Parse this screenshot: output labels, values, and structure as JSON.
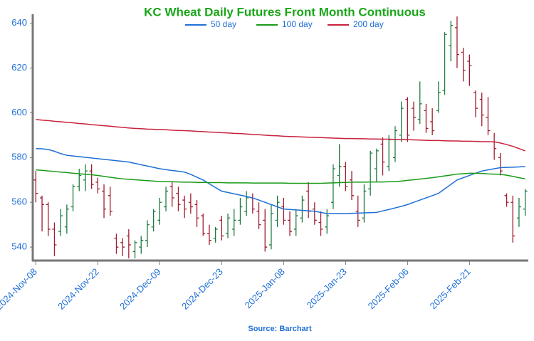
{
  "chart_data": {
    "type": "ohlc",
    "title": "KC Wheat Daily Futures Front Month Continuous",
    "source": "Source: Barchart",
    "categories": [
      "2024-Nov-08",
      null,
      null,
      null,
      null,
      null,
      null,
      null,
      null,
      null,
      "2024-Nov-22",
      null,
      null,
      null,
      null,
      null,
      null,
      null,
      null,
      null,
      "2024-Dec-09",
      null,
      null,
      null,
      null,
      null,
      null,
      null,
      null,
      null,
      "2024-Dec-23",
      null,
      null,
      null,
      null,
      null,
      null,
      null,
      null,
      null,
      "2025-Jan-08",
      null,
      null,
      null,
      null,
      null,
      null,
      null,
      null,
      null,
      "2025-Jan-23",
      null,
      null,
      null,
      null,
      null,
      null,
      null,
      null,
      null,
      "2025-Feb-06",
      null,
      null,
      null,
      null,
      null,
      null,
      null,
      null,
      null,
      "2025-Feb-21",
      null,
      null,
      null,
      null,
      null,
      null,
      null,
      null,
      null
    ],
    "open": [
      570,
      562,
      559,
      548,
      547,
      549,
      558,
      567,
      570,
      574,
      569,
      565,
      563,
      544,
      542,
      545,
      538,
      540,
      543,
      549,
      552,
      558,
      567,
      564,
      561,
      560,
      559,
      554,
      546,
      544,
      552,
      546,
      548,
      552,
      556,
      562,
      556,
      552,
      541,
      552,
      558,
      552,
      548,
      553,
      565,
      557,
      551,
      549,
      560,
      572,
      576,
      570,
      556,
      553,
      566,
      575,
      586,
      576,
      580,
      590,
      606,
      602,
      597,
      601,
      596,
      601,
      610,
      630,
      638,
      627,
      623,
      609,
      606,
      598,
      587,
      580,
      563,
      560,
      553,
      557
    ],
    "high": [
      574,
      563,
      560,
      551,
      557,
      559,
      568,
      575,
      577,
      577,
      571,
      568,
      567,
      546,
      544,
      548,
      543,
      545,
      552,
      557,
      562,
      567,
      569,
      567,
      563,
      564,
      561,
      555,
      550,
      549,
      554,
      555,
      557,
      562,
      565,
      564,
      560,
      557,
      559,
      563,
      562,
      556,
      557,
      563,
      569,
      560,
      556,
      557,
      577,
      586,
      578,
      574,
      563,
      568,
      583,
      584,
      589,
      590,
      594,
      605,
      607,
      605,
      614,
      604,
      602,
      614,
      636,
      641,
      643,
      629,
      626,
      610,
      609,
      607,
      591,
      582,
      564,
      563,
      562,
      566
    ],
    "low": [
      560,
      547,
      545,
      536,
      545,
      546,
      556,
      565,
      565,
      566,
      564,
      553,
      554,
      537,
      536,
      535,
      535,
      537,
      540,
      547,
      550,
      556,
      558,
      556,
      553,
      555,
      549,
      545,
      541,
      542,
      543,
      544,
      545,
      550,
      554,
      555,
      548,
      538,
      539,
      549,
      550,
      545,
      545,
      551,
      553,
      550,
      545,
      546,
      557,
      567,
      565,
      561,
      549,
      551,
      563,
      569,
      572,
      574,
      578,
      587,
      587,
      592,
      595,
      591,
      590,
      600,
      608,
      623,
      620,
      614,
      612,
      598,
      594,
      590,
      579,
      572,
      558,
      542,
      549,
      554
    ],
    "close": [
      564,
      559,
      548,
      541,
      554,
      557,
      567,
      572,
      574,
      568,
      566,
      557,
      556,
      540,
      540,
      541,
      542,
      543,
      550,
      556,
      560,
      565,
      562,
      559,
      557,
      558,
      553,
      546,
      543,
      548,
      545,
      553,
      552,
      558,
      562,
      557,
      550,
      540,
      555,
      560,
      552,
      547,
      554,
      561,
      556,
      552,
      548,
      554,
      575,
      576,
      567,
      563,
      552,
      565,
      582,
      583,
      578,
      588,
      592,
      602,
      590,
      598,
      604,
      593,
      592,
      609,
      635,
      639,
      626,
      619,
      621,
      602,
      599,
      592,
      584,
      574,
      560,
      545,
      558,
      565
    ],
    "up_color": "#1e7b3e",
    "down_color": "#a01c2e",
    "series": [
      {
        "name": "50 day",
        "color": "#1f6fd6",
        "values": [
          584,
          583.9,
          583.6,
          582.8,
          581.8,
          581,
          580.7,
          580.4,
          580.1,
          579.8,
          579.5,
          579.2,
          578.9,
          578.6,
          578.3,
          578,
          577.4,
          576.8,
          576.2,
          575.6,
          575,
          574.6,
          574.2,
          573.9,
          573.5,
          572.5,
          571.2,
          570,
          568.3,
          566.6,
          565,
          564.4,
          563.8,
          563.2,
          562.6,
          562,
          561,
          560,
          559,
          558,
          557,
          556.8,
          556.6,
          556.4,
          556.2,
          556,
          555.5,
          555,
          555,
          555,
          555,
          555.1,
          555.2,
          555.3,
          555.4,
          555.5,
          556.2,
          556.8,
          557.5,
          558.2,
          559,
          560,
          561,
          562,
          563,
          564,
          566,
          568,
          570,
          571,
          572,
          573,
          574,
          574.5,
          575,
          575.5,
          575.6,
          575.7,
          575.8,
          576
        ]
      },
      {
        "name": "100 day",
        "color": "#1a9a1a",
        "values": [
          574.5,
          574.3,
          574,
          573.8,
          573.5,
          573.3,
          573,
          572.8,
          572.5,
          572.3,
          572,
          571.6,
          571.2,
          570.8,
          570.5,
          570.3,
          570.1,
          569.9,
          569.7,
          569.5,
          569.3,
          569.2,
          569.2,
          569.1,
          569,
          569,
          568.9,
          568.9,
          568.8,
          568.8,
          568.8,
          568.7,
          568.7,
          568.7,
          568.7,
          568.6,
          568.6,
          568.6,
          568.6,
          568.6,
          568.6,
          568.5,
          568.5,
          568.5,
          568.5,
          568.5,
          568.5,
          568.6,
          568.7,
          568.8,
          568.9,
          569,
          569,
          569,
          569.1,
          569.1,
          569.1,
          569.2,
          569.2,
          569.5,
          569.8,
          570.1,
          570.4,
          570.7,
          571,
          571.4,
          571.8,
          572.2,
          572.6,
          572.8,
          573,
          573,
          572.9,
          572.7,
          572.6,
          572.5,
          572.1,
          571.6,
          571,
          570.5
        ]
      },
      {
        "name": "200 day",
        "color": "#c8203c",
        "values": [
          597,
          596.7,
          596.5,
          596.2,
          596,
          595.7,
          595.5,
          595.2,
          595,
          594.7,
          594.5,
          594.2,
          594,
          593.7,
          593.5,
          593.2,
          593,
          592.9,
          592.7,
          592.6,
          592.5,
          592.4,
          592.2,
          592.1,
          592,
          591.9,
          591.7,
          591.6,
          591.4,
          591.3,
          591.1,
          591,
          590.8,
          590.7,
          590.5,
          590.3,
          590.2,
          590,
          589.8,
          589.7,
          589.5,
          589.4,
          589.3,
          589.2,
          589.1,
          589,
          588.9,
          588.8,
          588.7,
          588.6,
          588.5,
          588.5,
          588.4,
          588.4,
          588.3,
          588.3,
          588.2,
          588.2,
          588.1,
          588.1,
          588,
          587.9,
          587.8,
          587.7,
          587.6,
          587.6,
          587.5,
          587.4,
          587.4,
          587.3,
          587.3,
          587.2,
          587.1,
          587.1,
          587,
          586.5,
          585.8,
          585,
          584,
          583
        ]
      }
    ],
    "ylim": [
      534,
      644
    ],
    "yticks": [
      540,
      560,
      580,
      600,
      620,
      640
    ]
  }
}
